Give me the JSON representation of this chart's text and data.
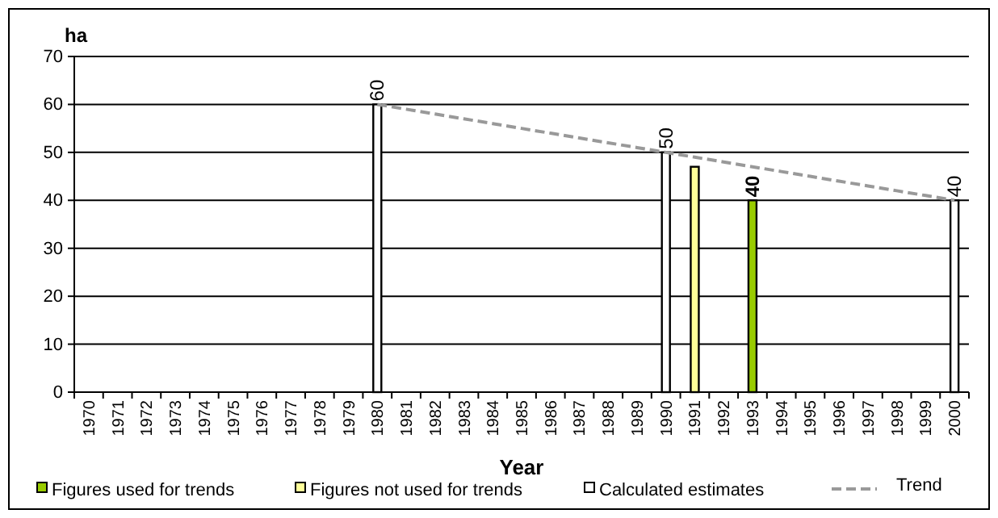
{
  "chart_data": {
    "type": "bar",
    "ylabel": "ha",
    "xlabel": "Year",
    "categories": [
      "1970",
      "1971",
      "1972",
      "1973",
      "1974",
      "1975",
      "1976",
      "1977",
      "1978",
      "1979",
      "1980",
      "1981",
      "1982",
      "1983",
      "1984",
      "1985",
      "1986",
      "1987",
      "1988",
      "1989",
      "1990",
      "1991",
      "1992",
      "1993",
      "1994",
      "1995",
      "1996",
      "1997",
      "1998",
      "1999",
      "2000"
    ],
    "series": [
      {
        "name": "Figures used for trends",
        "color": "#99cc00",
        "values": [
          null,
          null,
          null,
          null,
          null,
          null,
          null,
          null,
          null,
          null,
          null,
          null,
          null,
          null,
          null,
          null,
          null,
          null,
          null,
          null,
          null,
          null,
          null,
          40,
          null,
          null,
          null,
          null,
          null,
          null,
          null
        ],
        "value_labels": [
          null,
          null,
          null,
          null,
          null,
          null,
          null,
          null,
          null,
          null,
          null,
          null,
          null,
          null,
          null,
          null,
          null,
          null,
          null,
          null,
          null,
          null,
          null,
          "40",
          null,
          null,
          null,
          null,
          null,
          null,
          null
        ]
      },
      {
        "name": "Figures not used for trends",
        "color": "#ffff99",
        "values": [
          null,
          null,
          null,
          null,
          null,
          null,
          null,
          null,
          null,
          null,
          null,
          null,
          null,
          null,
          null,
          null,
          null,
          null,
          null,
          null,
          null,
          47,
          null,
          null,
          null,
          null,
          null,
          null,
          null,
          null,
          null
        ]
      },
      {
        "name": "Calculated estimates",
        "color": "#ffffff",
        "values": [
          null,
          null,
          null,
          null,
          null,
          null,
          null,
          null,
          null,
          null,
          60,
          null,
          null,
          null,
          null,
          null,
          null,
          null,
          null,
          null,
          50,
          null,
          null,
          null,
          null,
          null,
          null,
          null,
          null,
          null,
          40
        ],
        "value_labels": [
          null,
          null,
          null,
          null,
          null,
          null,
          null,
          null,
          null,
          null,
          "60",
          null,
          null,
          null,
          null,
          null,
          null,
          null,
          null,
          null,
          "50",
          null,
          null,
          null,
          null,
          null,
          null,
          null,
          null,
          null,
          "40"
        ]
      },
      {
        "name": "Trend",
        "type": "line",
        "color": "#999999",
        "line_style": "dashed",
        "values": [
          null,
          null,
          null,
          null,
          null,
          null,
          null,
          null,
          null,
          null,
          60,
          59,
          58,
          57,
          56,
          55,
          54,
          53,
          52,
          51,
          50,
          49,
          48,
          47,
          46,
          45,
          44,
          43,
          42,
          41,
          40
        ]
      }
    ],
    "ylim": [
      0,
      70
    ],
    "yticks": [
      0,
      10,
      20,
      30,
      40,
      50,
      60,
      70
    ],
    "grid": "y",
    "legend": "bottom"
  }
}
